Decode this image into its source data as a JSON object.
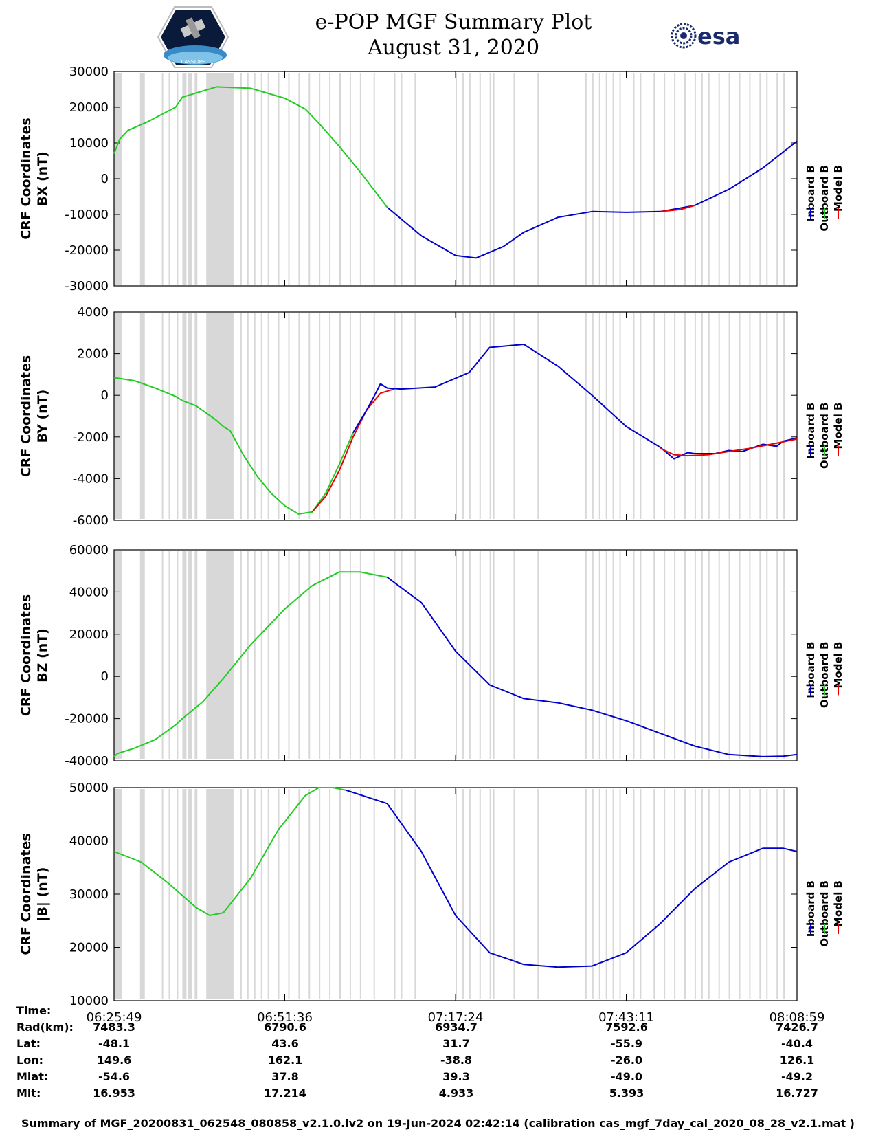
{
  "title": {
    "line1": "e-POP MGF Summary Plot",
    "line2": "August 31, 2020"
  },
  "logos": {
    "left_icon": "satellite-mission-patch-icon",
    "left_text": "CASSIOPE",
    "right_icon": "esa-logo-icon",
    "right_text": "esa"
  },
  "colors": {
    "inboard": "#0000cc",
    "outboard": "#22cc22",
    "model": "#ee0000",
    "gap_band": "#d8d8d8"
  },
  "chart_data": [
    {
      "type": "line",
      "name": "bx",
      "ylabel_line1": "CRF Coordinates",
      "ylabel_line2": "BX (nT)",
      "ylim": [
        -30000,
        30000
      ],
      "yticks": [
        "30000",
        "20000",
        "10000",
        "0",
        "-10000",
        "-20000",
        "-30000"
      ],
      "ytick_values": [
        30000,
        20000,
        10000,
        0,
        -10000,
        -20000,
        -30000
      ],
      "legend": [
        "Inboard B",
        "Outboard B",
        "Model B"
      ],
      "series": [
        {
          "name": "Outboard B",
          "color_key": "outboard",
          "x": [
            0,
            0.008,
            0.02,
            0.05,
            0.09,
            0.1,
            0.15,
            0.2,
            0.25,
            0.28,
            0.3,
            0.33,
            0.36,
            0.4
          ],
          "y": [
            7000,
            11000,
            13500,
            16000,
            20000,
            22800,
            25700,
            25300,
            22500,
            19500,
            15500,
            9000,
            2000,
            -8000
          ]
        },
        {
          "name": "Inboard B",
          "color_key": "inboard",
          "x": [
            0.4,
            0.45,
            0.5,
            0.53,
            0.57,
            0.6,
            0.65,
            0.7,
            0.75,
            0.8,
            0.85,
            0.9,
            0.95,
            1.0
          ],
          "y": [
            -8000,
            -16000,
            -21500,
            -22200,
            -19000,
            -15000,
            -10800,
            -9200,
            -9400,
            -9200,
            -7500,
            -3000,
            3000,
            10500
          ]
        },
        {
          "name": "Model B",
          "color_key": "model",
          "x": [
            0.8,
            0.83,
            0.85
          ],
          "y": [
            -9200,
            -8600,
            -7500
          ]
        }
      ]
    },
    {
      "type": "line",
      "name": "by",
      "ylabel_line1": "CRF Coordinates",
      "ylabel_line2": "BY (nT)",
      "ylim": [
        -6000,
        4000
      ],
      "yticks": [
        "4000",
        "2000",
        "0",
        "-2000",
        "-4000",
        "-6000"
      ],
      "ytick_values": [
        4000,
        2000,
        0,
        -2000,
        -4000,
        -6000
      ],
      "legend": [
        "Inboard B",
        "Outboard B",
        "Model B"
      ],
      "series": [
        {
          "name": "Outboard B",
          "color_key": "outboard",
          "x": [
            0,
            0.03,
            0.06,
            0.09,
            0.1,
            0.12,
            0.15,
            0.16,
            0.17,
            0.19,
            0.21,
            0.23,
            0.25,
            0.27,
            0.29,
            0.31,
            0.33,
            0.35
          ],
          "y": [
            850,
            700,
            350,
            -50,
            -250,
            -500,
            -1200,
            -1500,
            -1700,
            -2900,
            -3900,
            -4700,
            -5300,
            -5700,
            -5600,
            -4700,
            -3300,
            -1800
          ]
        },
        {
          "name": "Model B",
          "color_key": "model",
          "x": [
            0.29,
            0.31,
            0.33,
            0.35,
            0.37,
            0.39,
            0.41
          ],
          "y": [
            -5600,
            -4850,
            -3600,
            -2000,
            -700,
            100,
            300
          ]
        },
        {
          "name": "Inboard B",
          "color_key": "inboard",
          "x": [
            0.35,
            0.37,
            0.38,
            0.39,
            0.4,
            0.42,
            0.47,
            0.52,
            0.55,
            0.6,
            0.65,
            0.7,
            0.75,
            0.8,
            0.82,
            0.84,
            0.85,
            0.88,
            0.9,
            0.92,
            0.95,
            0.97,
            0.98,
            1.0
          ],
          "y": [
            -1800,
            -700,
            -100,
            550,
            350,
            300,
            400,
            1100,
            2300,
            2450,
            1400,
            0,
            -1500,
            -2500,
            -3050,
            -2750,
            -2800,
            -2800,
            -2650,
            -2700,
            -2350,
            -2450,
            -2200,
            -2050
          ]
        },
        {
          "name": "Model B",
          "color_key": "model",
          "x": [
            0.8,
            0.82,
            0.84,
            0.87,
            0.9,
            0.93,
            0.97,
            1.0
          ],
          "y": [
            -2550,
            -2850,
            -2900,
            -2850,
            -2700,
            -2550,
            -2300,
            -2100
          ]
        }
      ]
    },
    {
      "type": "line",
      "name": "bz",
      "ylabel_line1": "CRF Coordinates",
      "ylabel_line2": "BZ (nT)",
      "ylim": [
        -40000,
        60000
      ],
      "yticks": [
        "60000",
        "40000",
        "20000",
        "0",
        "-20000",
        "-40000"
      ],
      "ytick_values": [
        60000,
        40000,
        20000,
        0,
        -20000,
        -40000
      ],
      "legend": [
        "Inboard B",
        "Outboard B",
        "Model B"
      ],
      "series": [
        {
          "name": "Outboard B",
          "color_key": "outboard",
          "x": [
            0,
            0.005,
            0.03,
            0.06,
            0.09,
            0.1,
            0.13,
            0.16,
            0.2,
            0.25,
            0.29,
            0.33,
            0.36,
            0.4
          ],
          "y": [
            -38000,
            -36500,
            -34000,
            -30000,
            -23000,
            -20000,
            -12000,
            -1000,
            15000,
            32000,
            43000,
            49500,
            49500,
            47000
          ]
        },
        {
          "name": "Inboard B",
          "color_key": "inboard",
          "x": [
            0.4,
            0.45,
            0.5,
            0.55,
            0.6,
            0.65,
            0.7,
            0.75,
            0.8,
            0.85,
            0.9,
            0.95,
            0.98,
            1.0
          ],
          "y": [
            47000,
            35000,
            12000,
            -4000,
            -10500,
            -12500,
            -16000,
            -21000,
            -27000,
            -33000,
            -37000,
            -38000,
            -37800,
            -37000
          ]
        }
      ]
    },
    {
      "type": "line",
      "name": "bmag",
      "ylabel_line1": "CRF Coordinates",
      "ylabel_line2": "|B| (nT)",
      "ylim": [
        10000,
        50000
      ],
      "yticks": [
        "50000",
        "40000",
        "30000",
        "20000",
        "10000"
      ],
      "ytick_values": [
        50000,
        40000,
        30000,
        20000,
        10000
      ],
      "legend": [
        "Inboard B",
        "Outboard B",
        "Model B"
      ],
      "series": [
        {
          "name": "Outboard B",
          "color_key": "outboard",
          "x": [
            0,
            0.04,
            0.08,
            0.12,
            0.14,
            0.16,
            0.2,
            0.24,
            0.28,
            0.3,
            0.32,
            0.34
          ],
          "y": [
            38000,
            36000,
            32000,
            27500,
            26000,
            26500,
            33000,
            42000,
            48500,
            50000,
            50000,
            49500
          ]
        },
        {
          "name": "Inboard B",
          "color_key": "inboard",
          "x": [
            0.34,
            0.4,
            0.45,
            0.5,
            0.55,
            0.6,
            0.65,
            0.7,
            0.75,
            0.8,
            0.85,
            0.9,
            0.95,
            0.98,
            1.0
          ],
          "y": [
            49500,
            47000,
            38000,
            26000,
            19000,
            16800,
            16300,
            16500,
            19000,
            24500,
            31000,
            36000,
            38600,
            38600,
            38000
          ]
        }
      ]
    }
  ],
  "x_ticks": {
    "labels": [
      "06:25:49",
      "06:51:36",
      "07:17:24",
      "07:43:11",
      "08:08:59"
    ],
    "positions": [
      0,
      0.25,
      0.5,
      0.75,
      1.0
    ]
  },
  "data_gaps": {
    "description_values_fractional_time": [
      [
        0.0,
        0.012
      ],
      [
        0.038,
        0.045
      ],
      [
        0.07,
        0.072
      ],
      [
        0.08,
        0.082
      ],
      [
        0.092,
        0.094
      ],
      [
        0.1,
        0.106
      ],
      [
        0.108,
        0.114
      ],
      [
        0.118,
        0.122
      ],
      [
        0.135,
        0.175
      ],
      [
        0.185,
        0.187
      ],
      [
        0.195,
        0.197
      ],
      [
        0.205,
        0.207
      ],
      [
        0.215,
        0.217
      ],
      [
        0.225,
        0.227
      ],
      [
        0.24,
        0.242
      ],
      [
        0.255,
        0.257
      ],
      [
        0.27,
        0.272
      ],
      [
        0.285,
        0.287
      ],
      [
        0.3,
        0.302
      ],
      [
        0.315,
        0.317
      ],
      [
        0.33,
        0.332
      ],
      [
        0.345,
        0.347
      ],
      [
        0.36,
        0.362
      ],
      [
        0.38,
        0.382
      ],
      [
        0.41,
        0.412
      ],
      [
        0.42,
        0.422
      ],
      [
        0.44,
        0.442
      ],
      [
        0.5,
        0.502
      ],
      [
        0.51,
        0.512
      ],
      [
        0.52,
        0.522
      ],
      [
        0.535,
        0.537
      ],
      [
        0.55,
        0.552
      ],
      [
        0.555,
        0.557
      ],
      [
        0.585,
        0.587
      ],
      [
        0.62,
        0.622
      ],
      [
        0.69,
        0.692
      ],
      [
        0.7,
        0.702
      ],
      [
        0.71,
        0.712
      ],
      [
        0.72,
        0.722
      ],
      [
        0.73,
        0.732
      ],
      [
        0.74,
        0.742
      ],
      [
        0.76,
        0.762
      ],
      [
        0.77,
        0.772
      ],
      [
        0.79,
        0.792
      ],
      [
        0.805,
        0.807
      ],
      [
        0.82,
        0.822
      ],
      [
        0.835,
        0.837
      ],
      [
        0.85,
        0.852
      ],
      [
        0.86,
        0.862
      ],
      [
        0.87,
        0.872
      ],
      [
        0.885,
        0.887
      ],
      [
        0.9,
        0.902
      ],
      [
        0.915,
        0.917
      ],
      [
        0.93,
        0.932
      ],
      [
        0.945,
        0.947
      ],
      [
        0.955,
        0.957
      ],
      [
        0.97,
        0.972
      ],
      [
        0.98,
        0.982
      ]
    ]
  },
  "footer": {
    "rows": [
      {
        "label": "Time:",
        "values": [
          "06:25:49",
          "06:51:36",
          "07:17:24",
          "07:43:11",
          "08:08:59"
        ]
      },
      {
        "label": "Rad(km):",
        "values": [
          "7483.3",
          "6790.6",
          "6934.7",
          "7592.6",
          "7426.7"
        ]
      },
      {
        "label": "Lat:",
        "values": [
          "-48.1",
          "43.6",
          "31.7",
          "-55.9",
          "-40.4"
        ]
      },
      {
        "label": "Lon:",
        "values": [
          "149.6",
          "162.1",
          "-38.8",
          "-26.0",
          "126.1"
        ]
      },
      {
        "label": "Mlat:",
        "values": [
          "-54.6",
          "37.8",
          "39.3",
          "-49.0",
          "-49.2"
        ]
      },
      {
        "label": "Mlt:",
        "values": [
          "16.953",
          "17.214",
          "4.933",
          "5.393",
          "16.727"
        ]
      }
    ],
    "caption": "Summary of MGF_20200831_062548_080858_v2.1.0.lv2 on 19-Jun-2024 02:42:14 (calibration cas_mgf_7day_cal_2020_08_28_v2.1.mat )"
  }
}
